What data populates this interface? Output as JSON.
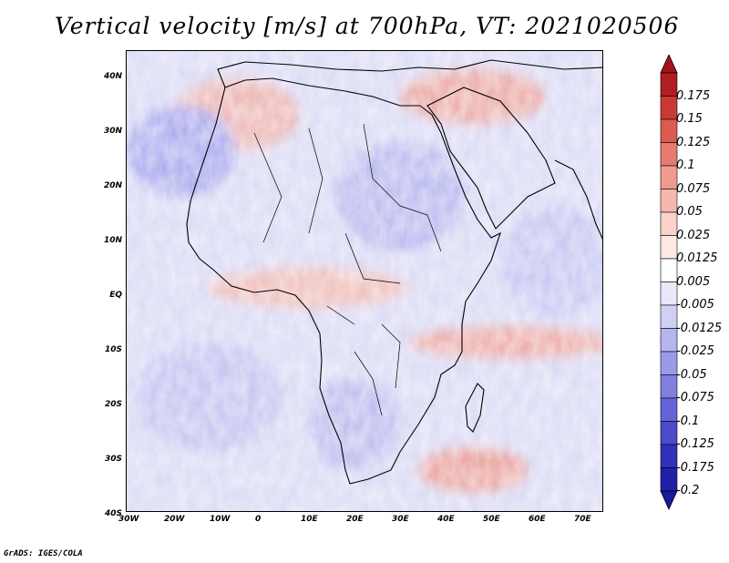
{
  "title": "Vertical velocity [m/s] at 700hPa, VT: 2021020506",
  "footer": "GrADS: IGES/COLA",
  "axes": {
    "x_ticks": [
      "30W",
      "20W",
      "10W",
      "0",
      "10E",
      "20E",
      "30E",
      "40E",
      "50E",
      "60E",
      "70E"
    ],
    "y_ticks": [
      "40N",
      "30N",
      "20N",
      "10N",
      "EQ",
      "10S",
      "20S",
      "30S",
      "40S"
    ]
  },
  "colorbar": {
    "levels": [
      "0.175",
      "0.15",
      "0.125",
      "0.1",
      "0.075",
      "0.05",
      "0.025",
      "0.0125",
      "0.005",
      "-0.005",
      "-0.0125",
      "-0.025",
      "-0.05",
      "-0.075",
      "-0.1",
      "-0.125",
      "-0.175",
      "-0.2"
    ],
    "colors": [
      "#b01e24",
      "#c93a36",
      "#dc5a50",
      "#e87b70",
      "#f09a8f",
      "#f6b8ae",
      "#fad2cb",
      "#fce8e4",
      "#ffffff",
      "#e8e8fa",
      "#d0d0f5",
      "#b5b5ef",
      "#9a9ae8",
      "#7f7fdf",
      "#6464d6",
      "#4a4acb",
      "#3030bb",
      "#2020a8"
    ],
    "top_color": "#a01418",
    "bottom_color": "#1a1a9a"
  },
  "colors": {
    "land_outline": "#000000",
    "background_field": "#d8d8f4"
  }
}
